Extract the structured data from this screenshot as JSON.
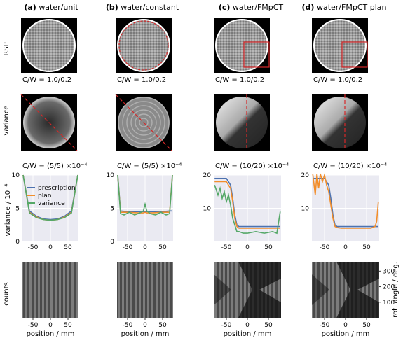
{
  "columns": [
    {
      "label": "(a)",
      "title": "water/unit"
    },
    {
      "label": "(b)",
      "title": "water/constant"
    },
    {
      "label": "(c)",
      "title": "water/FMpCT"
    },
    {
      "label": "(d)",
      "title": "water/FMpCT plan"
    }
  ],
  "row_labels": {
    "rsp": "RSP",
    "variance": "variance",
    "counts": "counts"
  },
  "rsp_captions": [
    "C/W = 1.0/0.2",
    "C/W = 1.0/0.2",
    "C/W = 1.0/0.2",
    "C/W = 1.0/0.2"
  ],
  "variance_captions": [
    "C/W = (5/5) ×10⁻⁴",
    "C/W = (5/5) ×10⁻⁴",
    "C/W = (10/20) ×10⁻⁴",
    "C/W = (10/20) ×10⁻⁴"
  ],
  "colors": {
    "prescription": "#4c72b0",
    "plan": "#f28e2b",
    "variance": "#55a868",
    "plot_bg": "#eaeaf2",
    "roi": "#d62728"
  },
  "chart_data": [
    {
      "type": "line",
      "panel": "a",
      "ylabel": "variance / 10⁻⁴",
      "xlabel": "",
      "xlim": [
        -80,
        80
      ],
      "ylim": [
        0,
        10
      ],
      "xticks": [
        -50,
        0,
        50
      ],
      "yticks": [
        0,
        5,
        10
      ],
      "grid": true,
      "legend": "center",
      "series": [
        {
          "name": "prescription",
          "x": [
            -78,
            -60,
            -40,
            -20,
            0,
            20,
            40,
            60,
            78
          ],
          "y": [
            10,
            4.6,
            3.8,
            3.4,
            3.3,
            3.4,
            3.8,
            4.6,
            10
          ]
        },
        {
          "name": "plan",
          "x": [
            -78,
            -60,
            -40,
            -20,
            0,
            20,
            40,
            60,
            78
          ],
          "y": [
            10,
            4.4,
            3.7,
            3.3,
            3.2,
            3.3,
            3.7,
            4.4,
            10
          ]
        },
        {
          "name": "variance",
          "x": [
            -78,
            -60,
            -40,
            -20,
            0,
            20,
            40,
            60,
            78
          ],
          "y": [
            10,
            4.3,
            3.6,
            3.3,
            3.2,
            3.3,
            3.6,
            4.3,
            10
          ]
        }
      ]
    },
    {
      "type": "line",
      "panel": "b",
      "xlabel": "",
      "xlim": [
        -80,
        80
      ],
      "ylim": [
        0,
        10
      ],
      "xticks": [
        -50,
        0,
        50
      ],
      "yticks": [
        0,
        5,
        10
      ],
      "grid": true,
      "series": [
        {
          "x": [
            -78,
            -70,
            -50,
            -20,
            -5,
            0,
            5,
            20,
            50,
            70,
            78
          ],
          "y": [
            10,
            4.6,
            4.5,
            4.5,
            4.5,
            4.5,
            4.5,
            4.5,
            4.5,
            4.6,
            4.6
          ]
        },
        {
          "x": [
            -78,
            -70,
            -50,
            -20,
            -5,
            0,
            5,
            20,
            50,
            70,
            78
          ],
          "y": [
            10,
            4.4,
            4.4,
            4.3,
            4.3,
            4.4,
            4.3,
            4.3,
            4.4,
            4.4,
            10
          ]
        },
        {
          "x": [
            -78,
            -70,
            -60,
            -45,
            -30,
            -15,
            -5,
            0,
            5,
            15,
            30,
            45,
            60,
            70,
            78
          ],
          "y": [
            10,
            4.2,
            4.0,
            4.4,
            4.0,
            4.3,
            4.6,
            5.6,
            4.6,
            4.2,
            4.0,
            4.4,
            4.0,
            4.2,
            10
          ]
        }
      ]
    },
    {
      "type": "line",
      "panel": "c",
      "xlabel": "",
      "xlim": [
        -80,
        80
      ],
      "ylim": [
        0,
        20
      ],
      "xticks": [
        -50,
        0,
        50
      ],
      "yticks": [
        10,
        20
      ],
      "grid": true,
      "series": [
        {
          "x": [
            -78,
            -50,
            -40,
            -35,
            -30,
            -25,
            -20,
            -10,
            0,
            20,
            40,
            60,
            78
          ],
          "y": [
            19,
            19,
            17,
            13,
            8,
            5,
            4.5,
            4.5,
            4.5,
            4.5,
            4.5,
            4.5,
            4.5
          ]
        },
        {
          "x": [
            -78,
            -50,
            -40,
            -35,
            -30,
            -25,
            -20,
            -10,
            0,
            20,
            40,
            60,
            78
          ],
          "y": [
            18,
            18,
            16,
            12,
            7,
            4.5,
            4,
            4,
            4,
            4,
            4,
            4,
            4
          ]
        },
        {
          "x": [
            -78,
            -70,
            -65,
            -60,
            -55,
            -50,
            -45,
            -40,
            -35,
            -30,
            -25,
            -20,
            -10,
            0,
            20,
            40,
            60,
            70,
            78
          ],
          "y": [
            17,
            14,
            16,
            13,
            15,
            12,
            14,
            11,
            7,
            5,
            3,
            3,
            2.5,
            2.5,
            3,
            2.5,
            3,
            2.5,
            9
          ]
        }
      ]
    },
    {
      "type": "line",
      "panel": "d",
      "xlabel": "",
      "xlim": [
        -80,
        80
      ],
      "ylim": [
        0,
        20
      ],
      "xticks": [
        -50,
        0,
        50
      ],
      "yticks": [
        10,
        20
      ],
      "grid": true,
      "series": [
        {
          "x": [
            -78,
            -50,
            -40,
            -35,
            -30,
            -25,
            -20,
            -10,
            0,
            20,
            40,
            60,
            78
          ],
          "y": [
            19,
            19,
            17,
            13,
            8,
            5,
            4.5,
            4.5,
            4.5,
            4.5,
            4.5,
            4.5,
            4.5
          ]
        },
        {
          "x": [
            -78,
            -72,
            -68,
            -64,
            -60,
            -55,
            -50,
            -45,
            -40,
            -35,
            -30,
            -25,
            -20,
            -10,
            0,
            20,
            40,
            60,
            70,
            74,
            78
          ],
          "y": [
            22,
            14,
            23,
            16,
            21,
            18,
            20,
            17,
            15,
            11,
            7,
            4.5,
            4.2,
            4,
            4,
            4,
            4,
            4,
            4.5,
            6,
            12
          ]
        }
      ]
    }
  ],
  "counts_axis": {
    "xlabel": "position / mm",
    "xticks": [
      "-50",
      "0",
      "50"
    ],
    "ylabel": "rot. angle / deg.",
    "yticks": [
      "100",
      "200",
      "300"
    ]
  },
  "xticklabels": [
    "-50",
    "0",
    "50"
  ]
}
